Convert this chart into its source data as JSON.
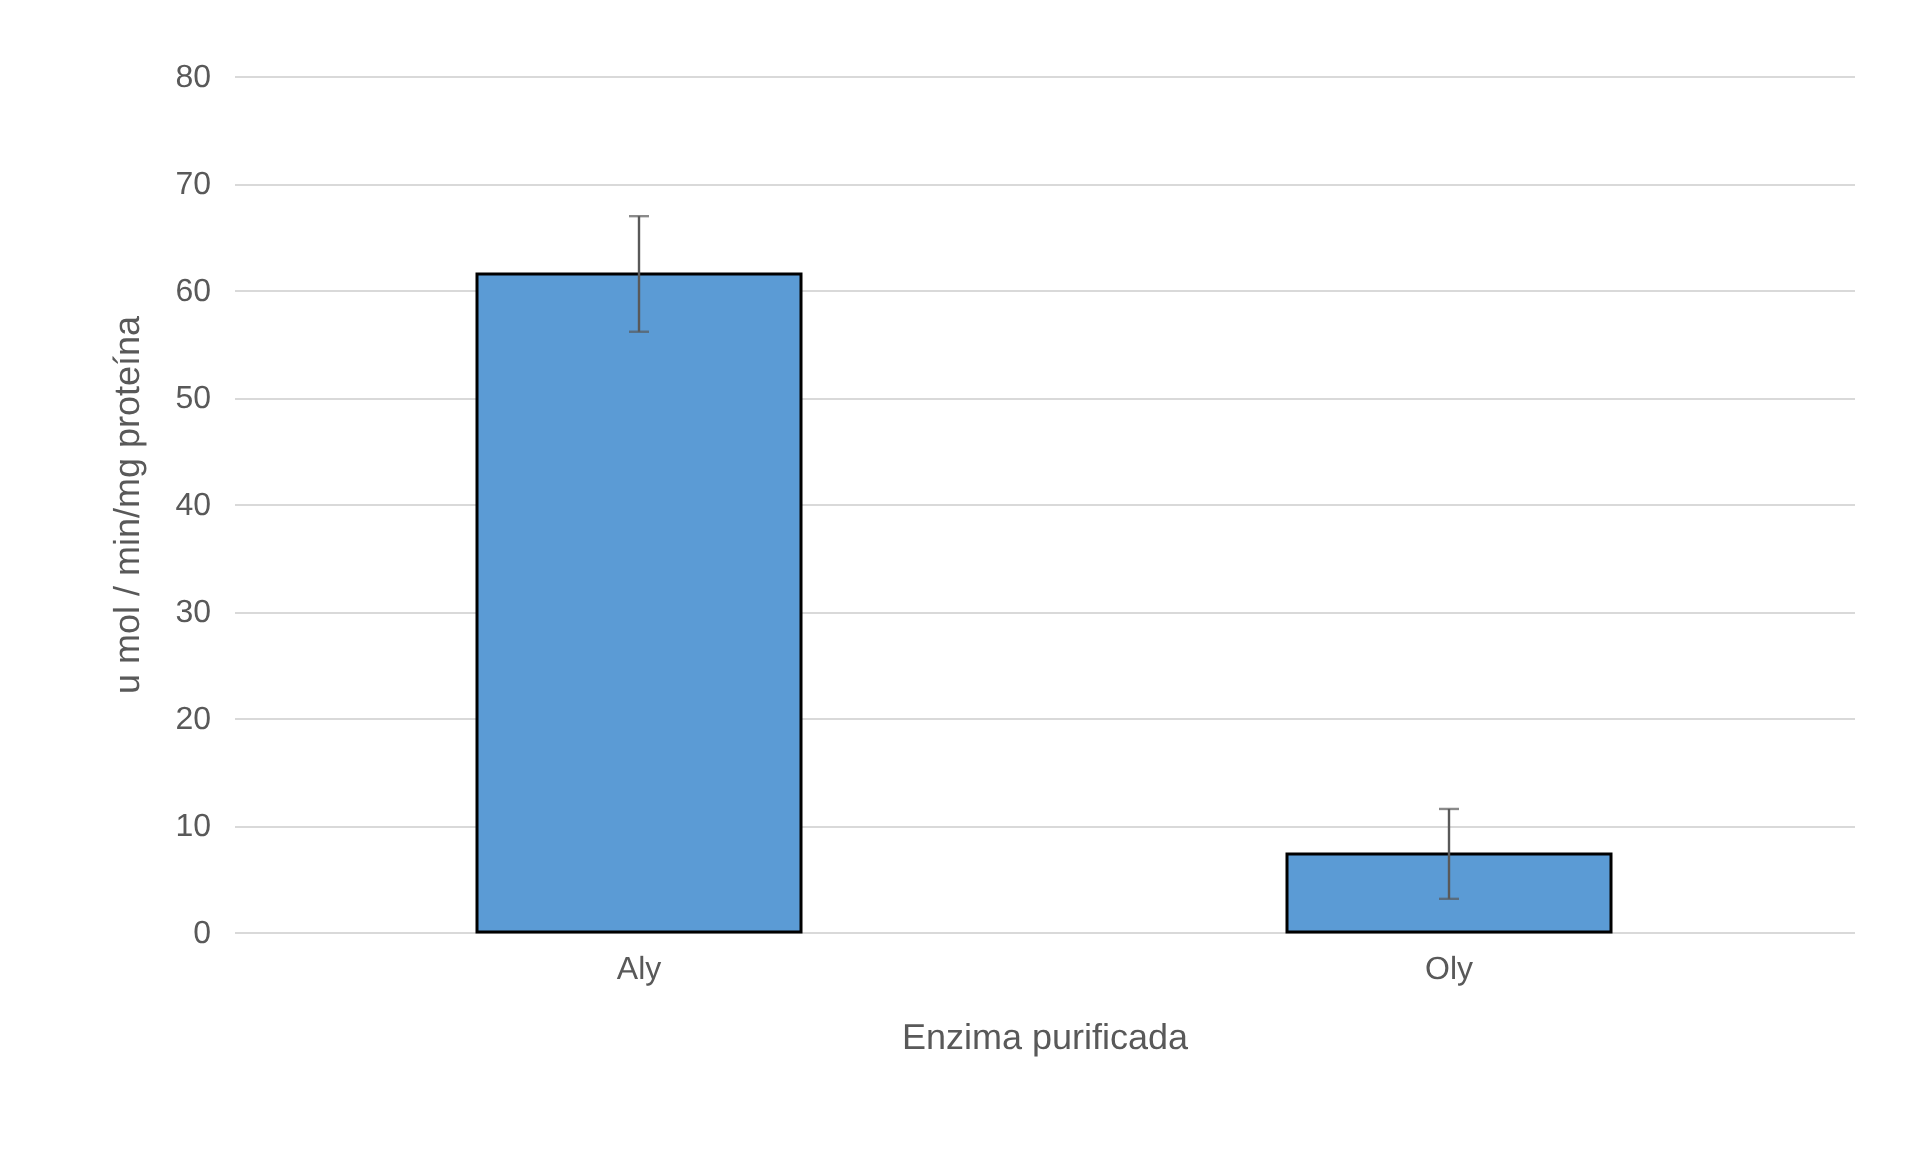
{
  "chart_data": {
    "type": "bar",
    "xlabel": "Enzima purificada",
    "ylabel": "u mol / min/mg proteína",
    "categories": [
      "Aly",
      "Oly"
    ],
    "series": [
      {
        "color": "#5b9bd5",
        "values": [
          61.5,
          7.3
        ],
        "errors": [
          5.4,
          4.2
        ]
      }
    ],
    "ylim": [
      0,
      80
    ],
    "yticks": [
      0,
      10,
      20,
      30,
      40,
      50,
      60,
      70,
      80
    ],
    "grid": "y"
  }
}
